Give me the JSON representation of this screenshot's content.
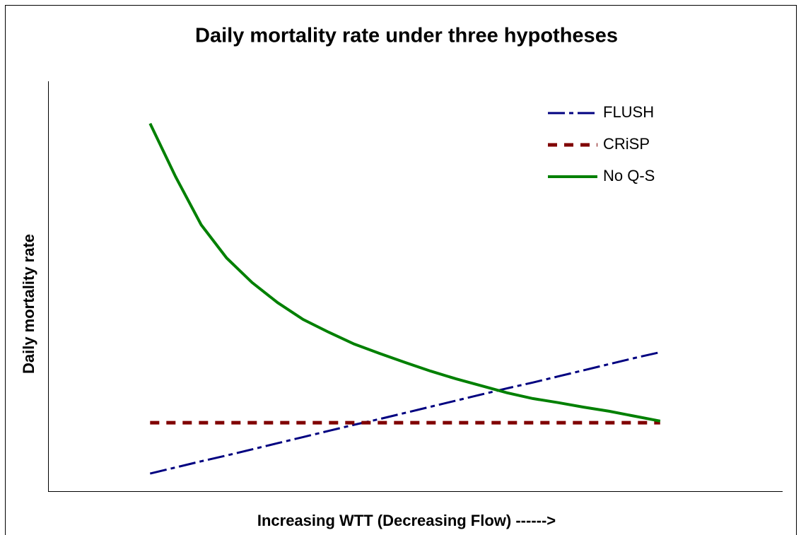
{
  "chart_data": {
    "type": "line",
    "title": "Daily mortality rate under three hypotheses",
    "x_label": "Increasing WTT (Decreasing Flow) ------>",
    "y_label": "Daily mortality rate",
    "x": [
      0,
      1,
      2,
      3,
      4,
      5,
      6,
      7,
      8,
      9,
      10,
      11,
      12,
      13,
      14,
      15,
      16,
      17,
      18,
      19,
      20
    ],
    "xlim": [
      -4,
      24.8
    ],
    "ylim": [
      0,
      100
    ],
    "legend": "top-right",
    "series": [
      {
        "name": "FLUSH",
        "color": "#000080",
        "dash": "24 6 6 6",
        "width": 3,
        "values": [
          4.3,
          5.8,
          7.3,
          8.7,
          10.2,
          11.7,
          13.2,
          14.7,
          16.2,
          17.6,
          19.1,
          20.6,
          22.1,
          23.6,
          25.1,
          26.5,
          28.0,
          29.5,
          31.0,
          32.5,
          33.9
        ]
      },
      {
        "name": "CRiSP",
        "color": "#800000",
        "dash": "13 10",
        "width": 5,
        "values": [
          16.7,
          16.7,
          16.7,
          16.7,
          16.7,
          16.7,
          16.7,
          16.7,
          16.7,
          16.7,
          16.7,
          16.7,
          16.7,
          16.7,
          16.7,
          16.7,
          16.7,
          16.7,
          16.7,
          16.7,
          16.7
        ]
      },
      {
        "name": "No Q-S",
        "color": "#008000",
        "dash": "none",
        "width": 4,
        "values": [
          89.7,
          76.7,
          65.0,
          56.9,
          50.9,
          46.0,
          41.9,
          38.8,
          35.9,
          33.6,
          31.4,
          29.3,
          27.4,
          25.7,
          24.0,
          22.6,
          21.6,
          20.5,
          19.5,
          18.3,
          17.1
        ]
      }
    ]
  }
}
